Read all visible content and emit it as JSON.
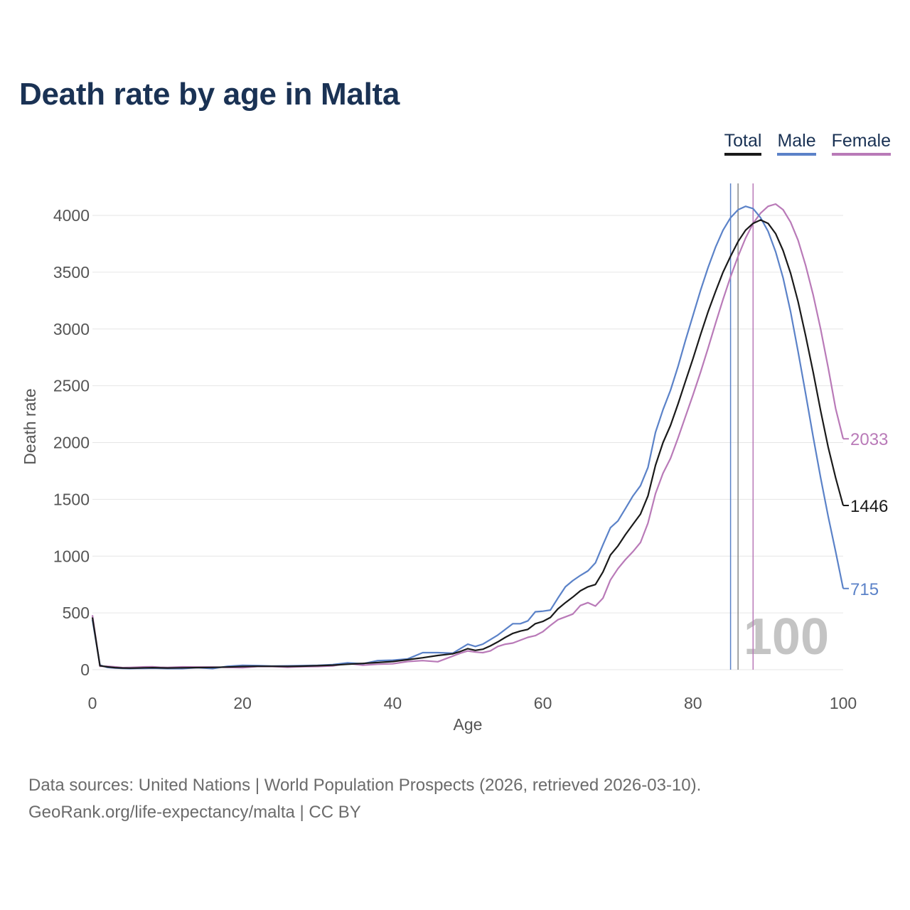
{
  "title": "Death rate by age in Malta",
  "legend": {
    "total": "Total",
    "male": "Male",
    "female": "Female"
  },
  "colors": {
    "total": "#1a1a1a",
    "male": "#5b82c8",
    "female": "#b97ab8",
    "grid": "#e6e6e6",
    "axis_text": "#555555",
    "age_label": "#c4c4c4"
  },
  "year_label": "100",
  "footer": {
    "sources": "Data sources: United Nations | World Population Prospects (2026, retrieved 2026-03-10).",
    "credit": "GeoRank.org/life-expectancy/malta | CC BY"
  },
  "chart_data": {
    "type": "line",
    "title": "Death rate by age in Malta",
    "xlabel": "Age",
    "ylabel": "Death rate",
    "xlim": [
      0,
      100
    ],
    "ylim": [
      0,
      4000
    ],
    "xticks": [
      0,
      20,
      40,
      60,
      80,
      100
    ],
    "yticks": [
      0,
      500,
      1000,
      1500,
      2000,
      2500,
      3000,
      3500,
      4000
    ],
    "reference_lines": [
      {
        "series": "male",
        "x": 85
      },
      {
        "series": "total",
        "x": 86
      },
      {
        "series": "female",
        "x": 88
      }
    ],
    "end_labels": {
      "total": "1446",
      "male": "715",
      "female": "2033"
    },
    "series": [
      {
        "key": "total",
        "name": "Total",
        "points": [
          [
            0,
            460
          ],
          [
            1,
            35
          ],
          [
            2,
            25
          ],
          [
            3,
            18
          ],
          [
            4,
            15
          ],
          [
            5,
            14
          ],
          [
            6,
            15
          ],
          [
            7,
            17
          ],
          [
            8,
            18
          ],
          [
            9,
            16
          ],
          [
            10,
            15
          ],
          [
            12,
            17
          ],
          [
            14,
            19
          ],
          [
            16,
            20
          ],
          [
            18,
            24
          ],
          [
            20,
            28
          ],
          [
            22,
            30
          ],
          [
            24,
            30
          ],
          [
            26,
            29
          ],
          [
            28,
            31
          ],
          [
            30,
            35
          ],
          [
            32,
            40
          ],
          [
            34,
            48
          ],
          [
            36,
            55
          ],
          [
            38,
            63
          ],
          [
            40,
            72
          ],
          [
            42,
            88
          ],
          [
            44,
            105
          ],
          [
            46,
            125
          ],
          [
            48,
            140
          ],
          [
            49,
            160
          ],
          [
            50,
            185
          ],
          [
            51,
            170
          ],
          [
            52,
            180
          ],
          [
            53,
            210
          ],
          [
            54,
            245
          ],
          [
            55,
            285
          ],
          [
            56,
            320
          ],
          [
            57,
            340
          ],
          [
            58,
            355
          ],
          [
            59,
            405
          ],
          [
            60,
            425
          ],
          [
            61,
            460
          ],
          [
            62,
            535
          ],
          [
            63,
            590
          ],
          [
            64,
            640
          ],
          [
            65,
            695
          ],
          [
            66,
            730
          ],
          [
            67,
            750
          ],
          [
            68,
            860
          ],
          [
            69,
            1010
          ],
          [
            70,
            1090
          ],
          [
            71,
            1190
          ],
          [
            72,
            1280
          ],
          [
            73,
            1370
          ],
          [
            74,
            1530
          ],
          [
            75,
            1800
          ],
          [
            76,
            2000
          ],
          [
            77,
            2150
          ],
          [
            78,
            2340
          ],
          [
            79,
            2540
          ],
          [
            80,
            2740
          ],
          [
            81,
            2950
          ],
          [
            82,
            3150
          ],
          [
            83,
            3330
          ],
          [
            84,
            3500
          ],
          [
            85,
            3640
          ],
          [
            86,
            3770
          ],
          [
            87,
            3870
          ],
          [
            88,
            3930
          ],
          [
            89,
            3960
          ],
          [
            90,
            3930
          ],
          [
            91,
            3840
          ],
          [
            92,
            3690
          ],
          [
            93,
            3490
          ],
          [
            94,
            3240
          ],
          [
            95,
            2940
          ],
          [
            96,
            2620
          ],
          [
            97,
            2280
          ],
          [
            98,
            1960
          ],
          [
            99,
            1690
          ],
          [
            100,
            1446
          ]
        ]
      },
      {
        "key": "male",
        "name": "Male",
        "points": [
          [
            0,
            440
          ],
          [
            1,
            40
          ],
          [
            2,
            20
          ],
          [
            3,
            15
          ],
          [
            4,
            12
          ],
          [
            5,
            10
          ],
          [
            6,
            11
          ],
          [
            7,
            12
          ],
          [
            8,
            13
          ],
          [
            9,
            11
          ],
          [
            10,
            10
          ],
          [
            12,
            10
          ],
          [
            14,
            18
          ],
          [
            16,
            10
          ],
          [
            18,
            30
          ],
          [
            20,
            38
          ],
          [
            22,
            36
          ],
          [
            24,
            32
          ],
          [
            26,
            34
          ],
          [
            28,
            36
          ],
          [
            30,
            38
          ],
          [
            32,
            45
          ],
          [
            34,
            60
          ],
          [
            36,
            52
          ],
          [
            38,
            80
          ],
          [
            40,
            84
          ],
          [
            42,
            95
          ],
          [
            44,
            150
          ],
          [
            46,
            150
          ],
          [
            48,
            145
          ],
          [
            49,
            185
          ],
          [
            50,
            225
          ],
          [
            51,
            205
          ],
          [
            52,
            225
          ],
          [
            53,
            265
          ],
          [
            54,
            305
          ],
          [
            55,
            355
          ],
          [
            56,
            405
          ],
          [
            57,
            405
          ],
          [
            58,
            430
          ],
          [
            59,
            510
          ],
          [
            60,
            515
          ],
          [
            61,
            525
          ],
          [
            62,
            630
          ],
          [
            63,
            730
          ],
          [
            64,
            785
          ],
          [
            65,
            830
          ],
          [
            66,
            870
          ],
          [
            67,
            940
          ],
          [
            68,
            1100
          ],
          [
            69,
            1250
          ],
          [
            70,
            1310
          ],
          [
            71,
            1420
          ],
          [
            72,
            1530
          ],
          [
            73,
            1620
          ],
          [
            74,
            1780
          ],
          [
            75,
            2090
          ],
          [
            76,
            2290
          ],
          [
            77,
            2460
          ],
          [
            78,
            2670
          ],
          [
            79,
            2900
          ],
          [
            80,
            3120
          ],
          [
            81,
            3340
          ],
          [
            82,
            3540
          ],
          [
            83,
            3720
          ],
          [
            84,
            3870
          ],
          [
            85,
            3980
          ],
          [
            86,
            4050
          ],
          [
            87,
            4080
          ],
          [
            88,
            4060
          ],
          [
            89,
            3980
          ],
          [
            90,
            3860
          ],
          [
            91,
            3680
          ],
          [
            92,
            3450
          ],
          [
            93,
            3150
          ],
          [
            94,
            2800
          ],
          [
            95,
            2430
          ],
          [
            96,
            2050
          ],
          [
            97,
            1690
          ],
          [
            98,
            1350
          ],
          [
            99,
            1040
          ],
          [
            100,
            715
          ]
        ]
      },
      {
        "key": "female",
        "name": "Female",
        "points": [
          [
            0,
            480
          ],
          [
            1,
            30
          ],
          [
            2,
            30
          ],
          [
            3,
            25
          ],
          [
            4,
            18
          ],
          [
            5,
            20
          ],
          [
            6,
            22
          ],
          [
            7,
            25
          ],
          [
            8,
            26
          ],
          [
            9,
            21
          ],
          [
            10,
            20
          ],
          [
            12,
            25
          ],
          [
            14,
            24
          ],
          [
            16,
            24
          ],
          [
            18,
            20
          ],
          [
            20,
            18
          ],
          [
            22,
            28
          ],
          [
            24,
            28
          ],
          [
            26,
            22
          ],
          [
            28,
            26
          ],
          [
            30,
            28
          ],
          [
            32,
            33
          ],
          [
            34,
            55
          ],
          [
            36,
            40
          ],
          [
            38,
            48
          ],
          [
            40,
            52
          ],
          [
            42,
            72
          ],
          [
            44,
            80
          ],
          [
            46,
            70
          ],
          [
            48,
            120
          ],
          [
            49,
            145
          ],
          [
            50,
            165
          ],
          [
            51,
            155
          ],
          [
            52,
            150
          ],
          [
            53,
            165
          ],
          [
            54,
            205
          ],
          [
            55,
            225
          ],
          [
            56,
            235
          ],
          [
            57,
            260
          ],
          [
            58,
            285
          ],
          [
            59,
            300
          ],
          [
            60,
            335
          ],
          [
            61,
            390
          ],
          [
            62,
            440
          ],
          [
            63,
            465
          ],
          [
            64,
            490
          ],
          [
            65,
            565
          ],
          [
            66,
            590
          ],
          [
            67,
            560
          ],
          [
            68,
            630
          ],
          [
            69,
            790
          ],
          [
            70,
            890
          ],
          [
            71,
            970
          ],
          [
            72,
            1040
          ],
          [
            73,
            1120
          ],
          [
            74,
            1290
          ],
          [
            75,
            1550
          ],
          [
            76,
            1730
          ],
          [
            77,
            1860
          ],
          [
            78,
            2040
          ],
          [
            79,
            2230
          ],
          [
            80,
            2420
          ],
          [
            81,
            2620
          ],
          [
            82,
            2830
          ],
          [
            83,
            3050
          ],
          [
            84,
            3260
          ],
          [
            85,
            3460
          ],
          [
            86,
            3640
          ],
          [
            87,
            3800
          ],
          [
            88,
            3930
          ],
          [
            89,
            4020
          ],
          [
            90,
            4080
          ],
          [
            91,
            4100
          ],
          [
            92,
            4050
          ],
          [
            93,
            3940
          ],
          [
            94,
            3780
          ],
          [
            95,
            3560
          ],
          [
            96,
            3300
          ],
          [
            97,
            3000
          ],
          [
            98,
            2660
          ],
          [
            99,
            2300
          ],
          [
            100,
            2033
          ]
        ]
      }
    ]
  }
}
